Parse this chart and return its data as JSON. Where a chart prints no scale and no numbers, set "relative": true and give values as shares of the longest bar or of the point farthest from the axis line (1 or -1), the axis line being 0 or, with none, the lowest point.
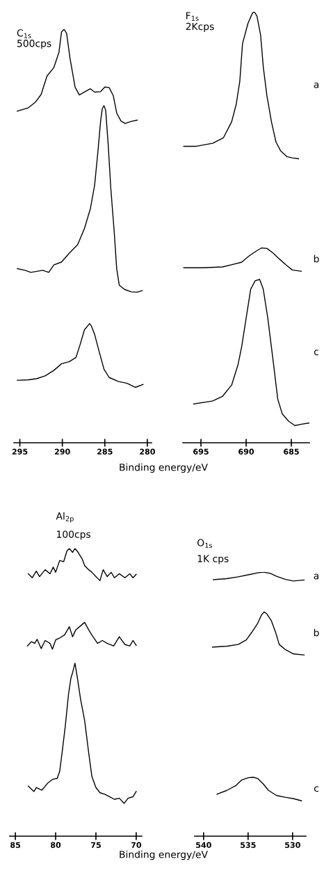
{
  "chart_data": [
    {
      "type": "line",
      "relative": true,
      "title": "C$_{1s}$",
      "subtitle": "500cps",
      "xlabel": "Binding energy/eV",
      "xlim": [
        295.7,
        279.5
      ],
      "xticks": [
        295,
        290,
        285,
        280
      ],
      "series": [
        {
          "color": "#000000",
          "x": [
            295.3,
            294.0,
            293.2,
            292.5,
            291.8,
            291.0,
            290.4,
            290.1,
            289.8,
            289.5,
            289.1,
            288.5,
            288.0,
            287.4,
            286.7,
            286.2,
            285.5,
            285.0,
            284.5,
            284.0,
            283.6,
            283.1,
            282.6,
            281.9,
            281.2
          ],
          "values": [
            0.802,
            0.81,
            0.823,
            0.842,
            0.887,
            0.907,
            0.944,
            0.993,
            1.0,
            0.99,
            0.93,
            0.86,
            0.841,
            0.848,
            0.856,
            0.848,
            0.849,
            0.86,
            0.859,
            0.839,
            0.797,
            0.778,
            0.772,
            0.777,
            0.78
          ]
        },
        {
          "color": "#000000",
          "x": [
            295.3,
            294.4,
            293.7,
            292.3,
            291.6,
            291.0,
            290.1,
            289.2,
            288.2,
            287.4,
            286.7,
            286.2,
            285.8,
            285.5,
            285.3,
            285.1,
            284.9,
            284.6,
            284.3,
            283.9,
            283.6,
            283.3,
            282.7,
            281.9,
            281.2,
            280.6
          ],
          "values": [
            0.421,
            0.417,
            0.412,
            0.417,
            0.412,
            0.43,
            0.437,
            0.458,
            0.479,
            0.518,
            0.566,
            0.623,
            0.707,
            0.777,
            0.808,
            0.815,
            0.804,
            0.72,
            0.616,
            0.511,
            0.42,
            0.381,
            0.371,
            0.365,
            0.364,
            0.368
          ]
        },
        {
          "color": "#000000",
          "x": [
            295.3,
            294.0,
            293.0,
            292.0,
            291.0,
            290.1,
            289.2,
            288.4,
            287.9,
            287.4,
            286.8,
            286.6,
            286.2,
            285.7,
            285.1,
            284.5,
            283.4,
            282.4,
            281.4,
            280.5
          ],
          "values": [
            0.151,
            0.152,
            0.155,
            0.162,
            0.175,
            0.191,
            0.196,
            0.206,
            0.238,
            0.273,
            0.288,
            0.283,
            0.262,
            0.223,
            0.178,
            0.158,
            0.148,
            0.144,
            0.134,
            0.141
          ]
        }
      ]
    },
    {
      "type": "line",
      "relative": true,
      "title": "F$_{1s}$",
      "subtitle": "2Kcps",
      "xlim": [
        697,
        683
      ],
      "xticks": [
        695,
        690,
        685
      ],
      "series": [
        {
          "name": "a",
          "color": "#000000",
          "x": [
            696.9,
            695.5,
            693.7,
            692.5,
            691.6,
            691.1,
            690.7,
            690.4,
            689.8,
            689.3,
            689.1,
            688.8,
            688.4,
            688.1,
            687.7,
            687.2,
            686.7,
            686.2,
            685.5,
            684.9,
            684.2
          ],
          "values": [
            0.688,
            0.688,
            0.695,
            0.708,
            0.745,
            0.785,
            0.839,
            0.926,
            0.973,
            0.997,
            1.0,
            0.99,
            0.946,
            0.872,
            0.805,
            0.745,
            0.698,
            0.678,
            0.664,
            0.661,
            0.659
          ]
        },
        {
          "name": "b",
          "color": "#000000",
          "x": [
            696.9,
            694.8,
            692.6,
            691.6,
            690.5,
            689.7,
            688.8,
            688.3,
            687.7,
            687.0,
            686.3,
            685.6,
            684.9,
            683.9
          ],
          "values": [
            0.406,
            0.406,
            0.408,
            0.413,
            0.419,
            0.433,
            0.446,
            0.452,
            0.451,
            0.44,
            0.426,
            0.413,
            0.401,
            0.398
          ]
        },
        {
          "name": "c",
          "color": "#000000",
          "x": [
            695.8,
            693.7,
            692.6,
            691.6,
            690.9,
            690.5,
            690.0,
            689.5,
            689.0,
            688.5,
            688.1,
            687.6,
            687.0,
            686.5,
            686.0,
            685.3,
            684.6,
            683.9,
            683.0
          ],
          "values": [
            0.09,
            0.097,
            0.108,
            0.134,
            0.181,
            0.222,
            0.289,
            0.356,
            0.376,
            0.379,
            0.356,
            0.289,
            0.188,
            0.101,
            0.067,
            0.05,
            0.04,
            0.043,
            0.046
          ]
        }
      ]
    },
    {
      "type": "line",
      "relative": true,
      "title": "Al$_{2p}$",
      "subtitle": "100cps",
      "xlabel": "Binding energy/eV",
      "xlim": [
        85.7,
        69.3
      ],
      "xticks": [
        85,
        80,
        75,
        70
      ],
      "series": [
        {
          "color": "#000000",
          "x": [
            83.4,
            82.9,
            82.4,
            82.0,
            81.3,
            80.7,
            80.3,
            80.0,
            79.5,
            79.0,
            78.6,
            78.3,
            77.9,
            77.6,
            77.2,
            76.7,
            76.4,
            75.9,
            75.5,
            75.0,
            74.5,
            74.1,
            73.6,
            73.1,
            72.7,
            72.1,
            71.4,
            70.8,
            70.4,
            70.0
          ],
          "values": [
            0.912,
            0.898,
            0.921,
            0.902,
            0.926,
            0.912,
            0.935,
            0.917,
            0.958,
            0.954,
            0.991,
            1.0,
            0.986,
            1.0,
            0.986,
            0.963,
            0.94,
            0.926,
            0.917,
            0.902,
            0.888,
            0.926,
            0.902,
            0.917,
            0.898,
            0.912,
            0.898,
            0.912,
            0.898,
            0.91
          ]
        },
        {
          "color": "#000000",
          "x": [
            83.5,
            83.0,
            82.6,
            82.3,
            81.8,
            81.3,
            80.7,
            80.4,
            80.0,
            79.5,
            78.9,
            78.3,
            77.9,
            77.5,
            76.9,
            76.4,
            75.9,
            75.5,
            74.8,
            74.2,
            73.6,
            72.8,
            72.1,
            71.4,
            70.8,
            70.4,
            70.0
          ],
          "values": [
            0.661,
            0.676,
            0.67,
            0.684,
            0.652,
            0.68,
            0.67,
            0.65,
            0.682,
            0.689,
            0.699,
            0.728,
            0.693,
            0.717,
            0.731,
            0.743,
            0.717,
            0.699,
            0.67,
            0.68,
            0.67,
            0.661,
            0.693,
            0.666,
            0.661,
            0.68,
            0.663
          ]
        },
        {
          "color": "#000000",
          "x": [
            83.4,
            82.7,
            82.4,
            81.7,
            81.0,
            80.4,
            79.8,
            79.5,
            79.2,
            78.8,
            78.4,
            78.1,
            77.9,
            77.6,
            77.3,
            76.9,
            76.4,
            75.9,
            75.5,
            75.0,
            74.5,
            73.9,
            73.3,
            72.7,
            72.1,
            71.5,
            71.0,
            70.4,
            70.0
          ],
          "values": [
            0.174,
            0.155,
            0.169,
            0.16,
            0.184,
            0.197,
            0.201,
            0.225,
            0.29,
            0.383,
            0.494,
            0.55,
            0.568,
            0.601,
            0.55,
            0.475,
            0.402,
            0.29,
            0.207,
            0.169,
            0.151,
            0.146,
            0.137,
            0.128,
            0.132,
            0.114,
            0.132,
            0.137,
            0.155
          ]
        }
      ]
    },
    {
      "type": "line",
      "relative": true,
      "title": "O$_{1s}$",
      "subtitle": "1K cps",
      "xlim": [
        541,
        528.5
      ],
      "xticks": [
        540,
        535,
        530
      ],
      "series": [
        {
          "name": "a",
          "color": "#000000",
          "x": [
            538.9,
            537.4,
            536.1,
            534.9,
            533.9,
            533.3,
            532.5,
            531.8,
            530.8,
            529.9,
            528.7
          ],
          "values": [
            0.971,
            0.975,
            0.982,
            0.99,
            0.997,
            1.0,
            0.995,
            0.984,
            0.972,
            0.966,
            0.97
          ]
        },
        {
          "name": "b",
          "color": "#000000",
          "x": [
            539.0,
            537.4,
            536.1,
            535.2,
            534.6,
            533.9,
            533.5,
            533.2,
            532.9,
            532.4,
            531.9,
            531.5,
            530.8,
            529.9,
            528.7
          ],
          "values": [
            0.716,
            0.719,
            0.726,
            0.743,
            0.771,
            0.807,
            0.837,
            0.849,
            0.842,
            0.817,
            0.771,
            0.726,
            0.706,
            0.69,
            0.686
          ]
        },
        {
          "name": "c",
          "color": "#000000",
          "x": [
            538.5,
            537.4,
            536.4,
            535.7,
            534.9,
            534.4,
            533.9,
            533.3,
            532.7,
            531.8,
            530.8,
            529.9,
            529.0
          ],
          "values": [
            0.159,
            0.173,
            0.191,
            0.213,
            0.222,
            0.223,
            0.218,
            0.198,
            0.173,
            0.154,
            0.147,
            0.142,
            0.134
          ]
        }
      ]
    }
  ]
}
